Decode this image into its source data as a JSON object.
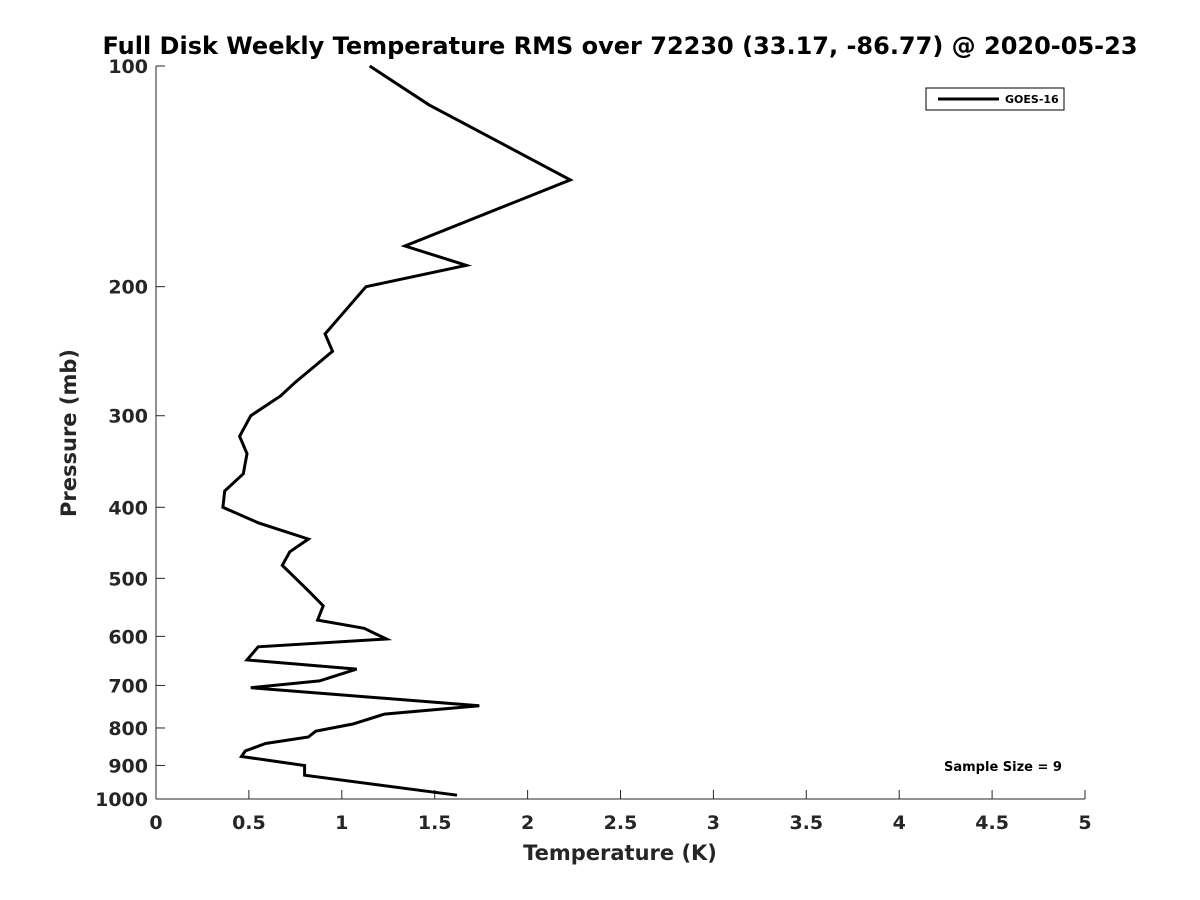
{
  "chart_data": {
    "type": "line",
    "title": "Full Disk Weekly Temperature RMS over 72230 (33.17, -86.77) @ 2020-05-23",
    "xlabel": "Temperature (K)",
    "ylabel": "Pressure (mb)",
    "xlim": [
      0,
      5
    ],
    "ylim": [
      100,
      1000
    ],
    "y_scale": "log",
    "y_reversed": true,
    "x_ticks": [
      0,
      0.5,
      1,
      1.5,
      2,
      2.5,
      3,
      3.5,
      4,
      4.5,
      5
    ],
    "x_tick_labels": [
      "0",
      "0.5",
      "1",
      "1.5",
      "2",
      "2.5",
      "3",
      "3.5",
      "4",
      "4.5",
      "5"
    ],
    "y_ticks": [
      100,
      200,
      300,
      400,
      500,
      600,
      700,
      800,
      900,
      1000
    ],
    "y_tick_labels": [
      "100",
      "200",
      "300",
      "400",
      "500",
      "600",
      "700",
      "800",
      "900",
      "1000"
    ],
    "grid": false,
    "legend_position": "top-right",
    "series": [
      {
        "name": "GOES-16",
        "color": "#000000",
        "x": [
          1.15,
          1.47,
          2.23,
          1.34,
          1.67,
          1.13,
          0.91,
          0.95,
          0.75,
          0.67,
          0.51,
          0.45,
          0.49,
          0.47,
          0.37,
          0.36,
          0.55,
          0.82,
          0.72,
          0.68,
          0.82,
          0.9,
          0.87,
          1.12,
          1.24,
          0.55,
          0.49,
          1.08,
          0.88,
          0.51,
          1.2,
          1.74,
          1.23,
          1.06,
          0.86,
          0.82,
          0.59,
          0.48,
          0.46,
          0.8,
          0.8,
          1.62
        ],
        "y": [
          100,
          113,
          143,
          176,
          187,
          200,
          232,
          245,
          270,
          282,
          300,
          320,
          338,
          360,
          380,
          400,
          420,
          442,
          460,
          480,
          520,
          545,
          570,
          585,
          605,
          620,
          646,
          665,
          690,
          705,
          728,
          746,
          766,
          790,
          808,
          823,
          840,
          860,
          875,
          900,
          928,
          988
        ]
      }
    ],
    "annotation": "Sample Size = 9"
  }
}
